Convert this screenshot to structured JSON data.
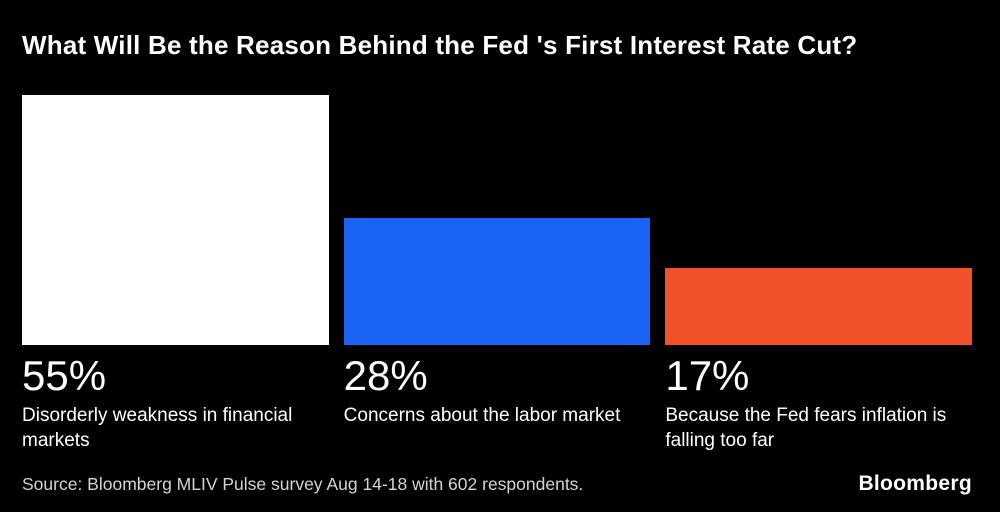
{
  "chart_data": {
    "type": "bar",
    "title": "What Will Be the Reason Behind the Fed 's First Interest Rate Cut?",
    "categories": [
      "Disorderly weakness in financial markets",
      "Concerns about the labor market",
      "Because the Fed fears inflation is falling too far"
    ],
    "values": [
      55,
      28,
      17
    ],
    "value_labels": [
      "55%",
      "28%",
      "17%"
    ],
    "bar_colors": [
      "#ffffff",
      "#1a63f5",
      "#f1522a"
    ],
    "xlabel": "",
    "ylabel": "",
    "ylim": [
      0,
      55
    ],
    "grid": false,
    "legend": false,
    "background": "#000000",
    "orientation": "vertical"
  },
  "footer": {
    "source": "Source: Bloomberg MLIV Pulse survey Aug 14-18 with 602 respondents.",
    "brand": "Bloomberg"
  }
}
